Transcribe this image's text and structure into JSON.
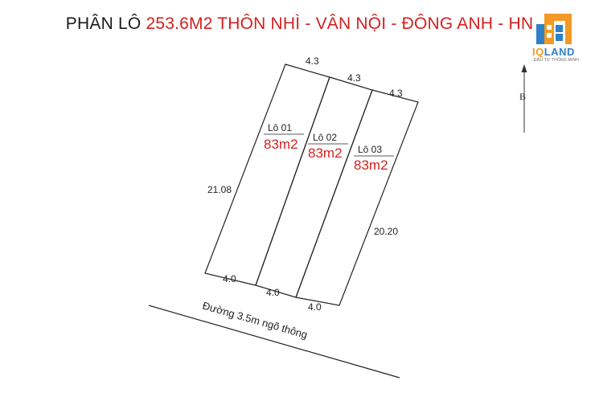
{
  "title": {
    "part1": "PHÂN LÔ ",
    "part2": "253.6M2 THÔN NHÌ - VÂN NỘI - ĐÔNG ANH - HN"
  },
  "logo": {
    "brand_prefix": "IQ",
    "brand_suffix": "LAND",
    "tagline": "ĐẦU TƯ THÔNG MINH",
    "icon": "building-logo-icon",
    "colors": {
      "blue": "#2f80c8",
      "orange": "#f29a23"
    }
  },
  "north": {
    "label": "B",
    "icon": "north-arrow-icon"
  },
  "lots": [
    {
      "name": "Lô 01",
      "area": "83m2"
    },
    {
      "name": "Lô 02",
      "area": "83m2"
    },
    {
      "name": "Lô 03",
      "area": "83m2"
    }
  ],
  "dimensions": {
    "top": [
      "4.3",
      "4.3",
      "4.3"
    ],
    "bottom": [
      "4.0",
      "4.0",
      "4.0"
    ],
    "left": "21.08",
    "right": "20.20"
  },
  "road": {
    "label": "Đường 3.5m ngõ thông"
  },
  "colors": {
    "title_red": "#d42020",
    "line": "#222222"
  }
}
